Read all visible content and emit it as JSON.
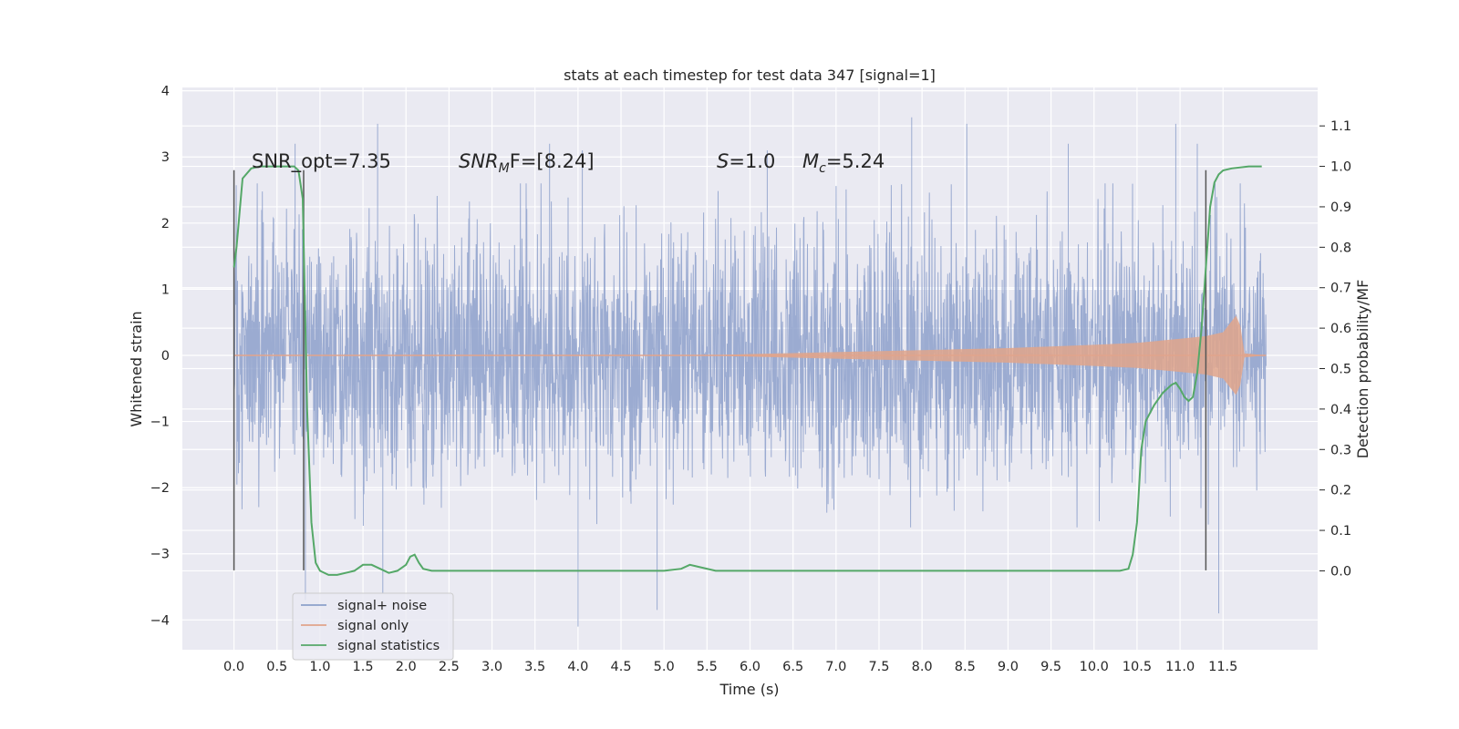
{
  "chart_data": {
    "type": "line",
    "title": "stats at each timestep for test data 347 [signal=1]",
    "xlabel": "Time (s)",
    "ylabel": "Whitened strain",
    "y2label": "Detection probability/MF",
    "xlim": [
      -0.6,
      12.6
    ],
    "ylim": [
      -4.45,
      4.05
    ],
    "y2lim": [
      -0.195,
      1.195
    ],
    "x_ticks": [
      "0.0",
      "0.5",
      "1.0",
      "1.5",
      "2.0",
      "2.5",
      "3.0",
      "3.5",
      "4.0",
      "4.5",
      "5.0",
      "5.5",
      "6.0",
      "6.5",
      "7.0",
      "7.5",
      "8.0",
      "8.5",
      "9.0",
      "9.5",
      "10.0",
      "10.5",
      "11.0",
      "11.5"
    ],
    "y_ticks": [
      "4",
      "3",
      "2",
      "1",
      "0",
      "−1",
      "−2",
      "−3",
      "−4"
    ],
    "y2_ticks": [
      "1.1",
      "1.0",
      "0.9",
      "0.8",
      "0.7",
      "0.6",
      "0.5",
      "0.4",
      "0.3",
      "0.2",
      "0.1",
      "0.0"
    ],
    "grid": true,
    "legend_position": "lower-left",
    "series": [
      {
        "name": "signal+ noise",
        "color": "#8da0cb",
        "axis": "left",
        "x_range": [
          0.0,
          12.0
        ],
        "typical_amplitude": 1.5,
        "spikes": [
          [
            0.71,
            3.2
          ],
          [
            0.83,
            -3.7
          ],
          [
            1.73,
            -3.6
          ],
          [
            1.67,
            3.5
          ],
          [
            3.67,
            3.2
          ],
          [
            4.0,
            -4.1
          ],
          [
            4.05,
            3.1
          ],
          [
            4.92,
            -3.85
          ],
          [
            7.88,
            3.6
          ],
          [
            8.52,
            3.5
          ],
          [
            10.95,
            3.5
          ],
          [
            11.45,
            -3.9
          ],
          [
            11.2,
            3.2
          ],
          [
            6.2,
            3.1
          ],
          [
            9.7,
            3.2
          ]
        ]
      },
      {
        "name": "signal only",
        "color": "#e1a48b",
        "axis": "left",
        "x": [
          0.0,
          5.5,
          6.0,
          7.0,
          8.0,
          9.0,
          10.0,
          10.5,
          11.0,
          11.3,
          11.5,
          11.65,
          11.7,
          11.75,
          12.0
        ],
        "envelope": [
          0.0,
          0.0,
          0.02,
          0.05,
          0.08,
          0.11,
          0.16,
          0.19,
          0.25,
          0.29,
          0.35,
          0.6,
          0.45,
          0.03,
          0.0
        ]
      },
      {
        "name": "signal statistics",
        "color": "#55a868",
        "axis": "right",
        "x": [
          0.0,
          0.03,
          0.1,
          0.2,
          0.3,
          0.5,
          0.7,
          0.75,
          0.8,
          0.85,
          0.9,
          0.95,
          1.0,
          1.1,
          1.2,
          1.4,
          1.5,
          1.6,
          1.8,
          1.9,
          2.0,
          2.05,
          2.1,
          2.15,
          2.2,
          2.3,
          2.6,
          3.0,
          4.0,
          5.0,
          5.2,
          5.3,
          5.4,
          5.6,
          6.0,
          7.0,
          8.0,
          9.0,
          10.0,
          10.3,
          10.4,
          10.45,
          10.5,
          10.55,
          10.6,
          10.7,
          10.8,
          10.9,
          10.95,
          11.0,
          11.05,
          11.1,
          11.15,
          11.2,
          11.25,
          11.3,
          11.35,
          11.4,
          11.45,
          11.5,
          11.6,
          11.8,
          11.95
        ],
        "values": [
          0.75,
          0.8,
          0.97,
          0.995,
          1.0,
          1.0,
          1.0,
          0.99,
          0.92,
          0.4,
          0.12,
          0.02,
          0.0,
          -0.01,
          -0.01,
          0.0,
          0.015,
          0.015,
          -0.005,
          0.0,
          0.015,
          0.035,
          0.04,
          0.02,
          0.005,
          0.0,
          0.0,
          0.0,
          0.0,
          0.0,
          0.005,
          0.015,
          0.01,
          0.0,
          0.0,
          0.0,
          0.0,
          0.0,
          0.0,
          0.0,
          0.005,
          0.04,
          0.12,
          0.3,
          0.37,
          0.41,
          0.44,
          0.46,
          0.465,
          0.45,
          0.43,
          0.42,
          0.43,
          0.49,
          0.6,
          0.75,
          0.9,
          0.96,
          0.98,
          0.99,
          0.995,
          1.0,
          1.0
        ]
      }
    ],
    "vertical_lines": [
      0.0,
      0.81,
      11.3
    ],
    "annotations": {
      "snr_opt": "SNR_opt=7.35",
      "snr_mf_main": "SNR",
      "snr_mf_sub": "M",
      "snr_mf_rest": "F=[8.24]",
      "s_main": "S",
      "s_rest": "=1.0",
      "mc_main": "M",
      "mc_sub": "c",
      "mc_rest": "=5.24"
    }
  }
}
